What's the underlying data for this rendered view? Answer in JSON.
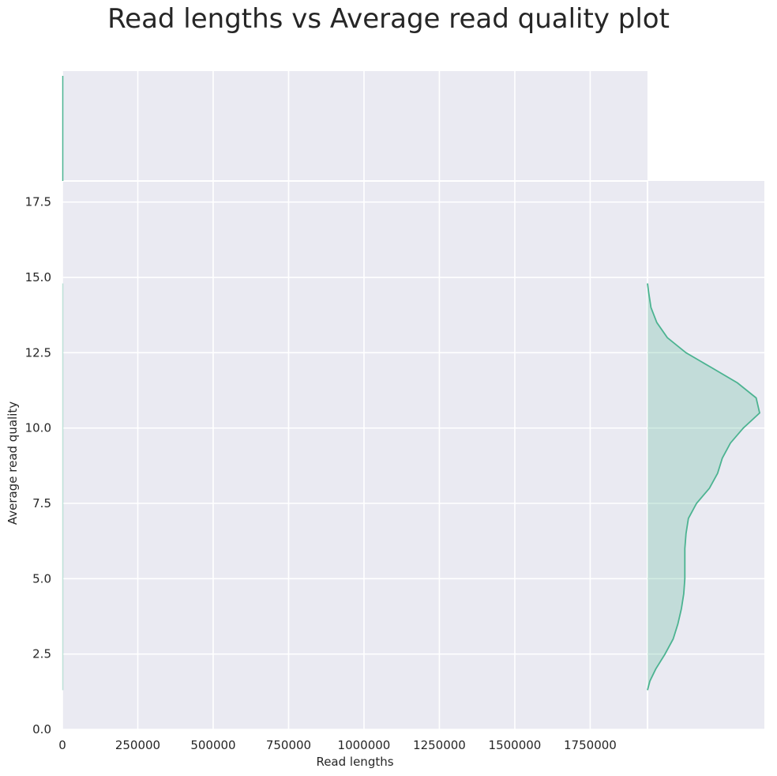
{
  "chart_data": {
    "type": "jointplot",
    "title": "Read lengths vs Average read quality plot",
    "xlabel": "Read lengths",
    "ylabel": "Average read quality",
    "xlim": [
      0,
      1940000
    ],
    "ylim": [
      0,
      18.2
    ],
    "xticks": [
      0,
      250000,
      500000,
      750000,
      1000000,
      1250000,
      1500000,
      1750000
    ],
    "xtick_labels": [
      "0",
      "250000",
      "500000",
      "750000",
      "1000000",
      "1250000",
      "1500000",
      "1750000"
    ],
    "yticks": [
      0,
      2.5,
      5,
      7.5,
      10,
      12.5,
      15,
      17.5
    ],
    "ytick_labels": [
      "0.0",
      "2.5",
      "5.0",
      "7.5",
      "10.0",
      "12.5",
      "15.0",
      "17.5"
    ],
    "grid": true,
    "colors": {
      "accent": "#4cb391",
      "background": "#eaeaf2",
      "grid": "#ffffff",
      "text": "#262626"
    },
    "marginal_y_density": {
      "y": [
        1.3,
        1.6,
        2.0,
        2.5,
        3.0,
        3.5,
        4.0,
        4.5,
        5.0,
        5.5,
        6.0,
        6.5,
        7.0,
        7.5,
        8.0,
        8.5,
        9.0,
        9.5,
        10.0,
        10.5,
        11.0,
        11.5,
        12.0,
        12.5,
        13.0,
        13.5,
        14.0,
        14.5,
        14.8
      ],
      "density": [
        0.0,
        0.02,
        0.07,
        0.15,
        0.22,
        0.26,
        0.29,
        0.31,
        0.32,
        0.32,
        0.32,
        0.33,
        0.35,
        0.42,
        0.53,
        0.6,
        0.64,
        0.71,
        0.82,
        0.96,
        0.93,
        0.77,
        0.55,
        0.33,
        0.17,
        0.08,
        0.03,
        0.01,
        0.0
      ]
    }
  }
}
